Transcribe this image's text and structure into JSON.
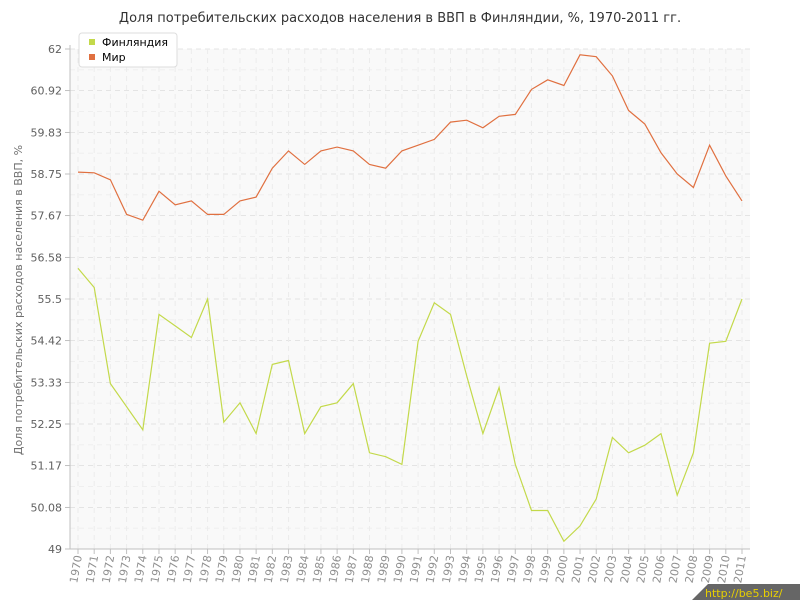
{
  "chart_data": {
    "type": "line",
    "title": "Доля потребительских расходов населения в ВВП в Финляндии, %, 1970-2011 гг.",
    "xlabel": "",
    "ylabel": "Доля потребительских расходов населения в ВВП, %",
    "ylim": [
      49,
      62
    ],
    "yticks": [
      "49",
      "50.08",
      "51.17",
      "52.25",
      "53.33",
      "54.42",
      "55.5",
      "56.58",
      "57.67",
      "58.75",
      "59.83",
      "60.92",
      "62"
    ],
    "ytick_values": [
      49,
      50.08,
      51.17,
      52.25,
      53.33,
      54.42,
      55.5,
      56.58,
      57.67,
      58.75,
      59.83,
      60.92,
      62
    ],
    "grid": true,
    "legend_position": "top-left",
    "x": [
      "1970",
      "1971",
      "1972",
      "1973",
      "1974",
      "1975",
      "1976",
      "1977",
      "1978",
      "1979",
      "1980",
      "1981",
      "1982",
      "1983",
      "1984",
      "1985",
      "1986",
      "1987",
      "1988",
      "1989",
      "1990",
      "1991",
      "1992",
      "1993",
      "1994",
      "1995",
      "1996",
      "1997",
      "1998",
      "1999",
      "2000",
      "2001",
      "2002",
      "2003",
      "2004",
      "2005",
      "2006",
      "2007",
      "2008",
      "2009",
      "2010",
      "2011"
    ],
    "series": [
      {
        "name": "Финляндия",
        "color": "#c3d94a",
        "values": [
          56.3,
          55.8,
          53.3,
          52.7,
          52.1,
          55.1,
          54.8,
          54.5,
          55.5,
          52.3,
          52.8,
          52.0,
          53.8,
          53.9,
          52.0,
          52.7,
          52.8,
          53.3,
          51.5,
          51.4,
          51.2,
          54.4,
          55.4,
          55.1,
          53.5,
          52.0,
          53.2,
          51.2,
          50.0,
          50.0,
          49.2,
          49.6,
          50.3,
          51.9,
          51.5,
          51.7,
          52.0,
          50.4,
          51.5,
          54.35,
          54.4,
          55.5
        ]
      },
      {
        "name": "Мир",
        "color": "#e07040",
        "values": [
          58.8,
          58.78,
          58.6,
          57.7,
          57.55,
          58.3,
          57.95,
          58.05,
          57.7,
          57.7,
          58.05,
          58.15,
          58.9,
          59.35,
          59.0,
          59.35,
          59.45,
          59.35,
          59.0,
          58.9,
          59.35,
          59.5,
          59.65,
          60.1,
          60.15,
          59.95,
          60.25,
          60.3,
          60.95,
          61.2,
          61.05,
          61.85,
          61.8,
          61.3,
          60.4,
          60.05,
          59.3,
          58.75,
          58.4,
          59.5,
          58.7,
          58.05
        ]
      }
    ]
  },
  "watermark": "http://be5.biz/"
}
